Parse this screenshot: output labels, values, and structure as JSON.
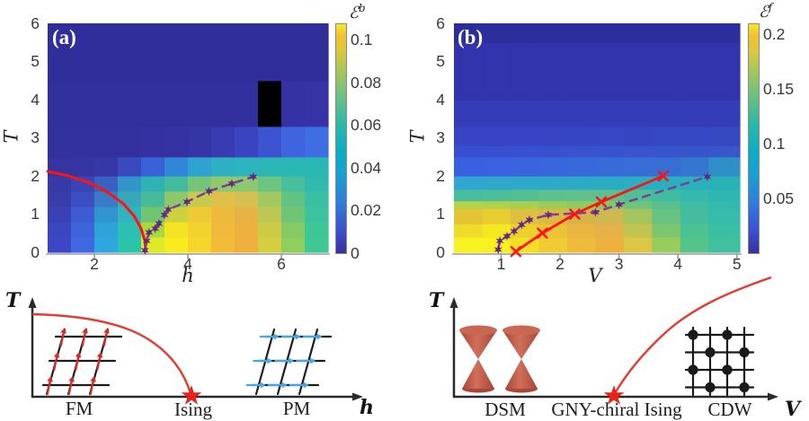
{
  "chart_data": [
    {
      "type": "heatmap",
      "panel": "(a)",
      "xlabel": "h",
      "ylabel": "T",
      "xlim": [
        1,
        7
      ],
      "ylim": [
        0,
        6
      ],
      "x_ticks": [
        2,
        4,
        6
      ],
      "y_ticks": [
        0,
        1,
        2,
        3,
        4,
        5,
        6
      ],
      "grid": false,
      "colorbar": {
        "symbol": "ℰ",
        "sup": "b",
        "ticks": [
          0,
          0.02,
          0.04,
          0.06,
          0.08,
          0.1
        ],
        "max": 0.108
      },
      "heatmap": {
        "x_edges": [
          1,
          1.5,
          2,
          2.5,
          3,
          3.5,
          4,
          4.5,
          5,
          5.5,
          6,
          6.5,
          7
        ],
        "t_edges": [
          0,
          0.4,
          0.8,
          1.2,
          1.6,
          2.0,
          2.5,
          3.3,
          4.5,
          6
        ],
        "cell_colors": [
          [
            "#3b47c6",
            "#3f68e2",
            "#2ea7e0",
            "#28c4ac",
            "#ddea28",
            "#f9ec1e",
            "#f7d62b",
            "#f2bc3a",
            "#efb13c",
            "#d5ce40",
            "#8ecf5d",
            "#3fc794"
          ],
          [
            "#3b45c0",
            "#3e64dc",
            "#2fa2da",
            "#2cc0b2",
            "#a8da40",
            "#f4e322",
            "#f4d22e",
            "#f0ba3c",
            "#edb13e",
            "#cccb48",
            "#84cb64",
            "#3ec696"
          ],
          [
            "#3a41b6",
            "#3d5cd2",
            "#3094d0",
            "#32b4bc",
            "#70c472",
            "#ccd13e",
            "#eeca34",
            "#edbb3c",
            "#e8b342",
            "#bcc754",
            "#70c476",
            "#3cc29c"
          ],
          [
            "#393dac",
            "#3b4ec2",
            "#3a7ac6",
            "#36a8b8",
            "#48ba9a",
            "#8cc86a",
            "#c8ca4c",
            "#dec04a",
            "#d4c050",
            "#a2c862",
            "#62c284",
            "#3abfa2"
          ],
          [
            "#3739a6",
            "#3a44b6",
            "#3a60c2",
            "#3396ca",
            "#2eb2b4",
            "#44bb9c",
            "#74c47a",
            "#90c96c",
            "#8cc870",
            "#6cc480",
            "#46bf9a",
            "#30b9ac"
          ],
          [
            "#3534a2",
            "#3535a4",
            "#3637a8",
            "#3a4abe",
            "#3a62d8",
            "#3286da",
            "#2fa2d2",
            "#2db0c2",
            "#2cb4bc",
            "#2bb5b6",
            "#2ab6b4",
            "#2ab6b2"
          ],
          [
            "#3331a0",
            "#3331a0",
            "#3331a0",
            "#3331a0",
            "#3432a2",
            "#3533a4",
            "#3635a8",
            "#383bb2",
            "#3a44c0",
            "#3c53d2",
            "#3e64e0",
            "#3f6ee4"
          ],
          [
            "#32309e",
            "#32309e",
            "#32309e",
            "#32309e",
            "#32309e",
            "#32309e",
            "#32309e",
            "#32309e",
            "#32309e",
            "#333разe0a0",
            "#3432a4",
            "#3533a6"
          ],
          [
            "#302e9a",
            "#302e9a",
            "#302e9a",
            "#302e9a",
            "#302e9a",
            "#302e9a",
            "#302e9a",
            "#302e9a",
            "#302e9a",
            "#302e9a",
            "#302e9a",
            "#302e9a"
          ]
        ]
      },
      "series": [
        {
          "name": "ising-critical-line",
          "style": "solid",
          "color": "#ff1212",
          "width": 3,
          "marker": "none",
          "points": [
            [
              1,
              2.12
            ],
            [
              1.45,
              2.0
            ],
            [
              1.9,
              1.82
            ],
            [
              2.3,
              1.56
            ],
            [
              2.62,
              1.27
            ],
            [
              2.85,
              0.95
            ],
            [
              3.0,
              0.62
            ],
            [
              3.08,
              0.3
            ],
            [
              3.1,
              0.02
            ]
          ]
        },
        {
          "name": "entanglement-peak-line",
          "style": "dashed",
          "color": "#7a3f9a",
          "marker_color": "#63297f",
          "width": 2.5,
          "marker": "star6",
          "points": [
            [
              3.08,
              0.05
            ],
            [
              3.12,
              0.3
            ],
            [
              3.17,
              0.52
            ],
            [
              3.3,
              0.62
            ],
            [
              3.38,
              0.75
            ],
            [
              3.5,
              0.98
            ],
            [
              3.58,
              1.12
            ],
            [
              3.98,
              1.32
            ],
            [
              4.45,
              1.6
            ],
            [
              4.94,
              1.8
            ],
            [
              5.4,
              1.98
            ]
          ]
        }
      ]
    },
    {
      "type": "heatmap",
      "panel": "(b)",
      "xlabel": "V",
      "ylabel": "T",
      "xlim": [
        0.2,
        5.05
      ],
      "ylim": [
        0,
        6
      ],
      "x_ticks": [
        1,
        2,
        3,
        4,
        5
      ],
      "y_ticks": [
        0,
        1,
        2,
        3,
        4,
        5,
        6
      ],
      "grid": false,
      "colorbar": {
        "symbol": "ℰ",
        "sup": "f",
        "ticks": [
          0.05,
          0.1,
          0.15,
          0.2
        ],
        "max": 0.21
      },
      "heatmap": {
        "x_edges": [
          0.2,
          0.68,
          1.16,
          1.64,
          2.12,
          2.6,
          3.08,
          3.56,
          4.04,
          4.52,
          5.05
        ],
        "t_edges": [
          0,
          0.4,
          0.75,
          1.15,
          1.35,
          1.65,
          2.0,
          2.5,
          2.8,
          3.3,
          4.0,
          5.5,
          6
        ],
        "cell_colors": [
          [
            "#f7f320",
            "#f9f01e",
            "#f4df24",
            "#f0cc32",
            "#eebb3c",
            "#edb23e",
            "#dcc646",
            "#98cc5c",
            "#54c48a",
            "#40c09e"
          ],
          [
            "#f0dc28",
            "#f4e822",
            "#eed02c",
            "#ecc238",
            "#eab540",
            "#e4b246",
            "#c2c452",
            "#7ec66e",
            "#4cc192",
            "#3cbea2"
          ],
          [
            "#e4c434",
            "#e8cc30",
            "#dfc03c",
            "#dcba42",
            "#dab346",
            "#ceb850",
            "#a4c45e",
            "#68c280",
            "#44bd9c",
            "#38bbaa"
          ],
          [
            "#b4d24c",
            "#b0d14e",
            "#a8cf52",
            "#9ccc58",
            "#90ca60",
            "#84c768",
            "#70c47a",
            "#58c08e",
            "#40bca2",
            "#34b9ae"
          ],
          [
            "#46bd9c",
            "#4cbe98",
            "#54c092",
            "#5cc18e",
            "#60c18c",
            "#5cc18e",
            "#50bf94",
            "#40bca0",
            "#34b9ac",
            "#2eb7b2"
          ],
          [
            "#30a6d0",
            "#2fa8cc",
            "#2ea9ca",
            "#2eaac8",
            "#2dabc6",
            "#2cacc4",
            "#2badc2",
            "#2aaec0",
            "#29b0bc",
            "#28b2b6"
          ],
          [
            "#3a60e2",
            "#3a62e0",
            "#3a64de",
            "#3966dc",
            "#3968da",
            "#386ad8",
            "#386cd6",
            "#376ed4",
            "#3576d0",
            "#2f90c8"
          ],
          [
            "#394ed4",
            "#394fd3",
            "#3950d2",
            "#3951d1",
            "#3852d0",
            "#3853cf",
            "#3854ce",
            "#3855cd",
            "#3756cc",
            "#3757ca"
          ],
          [
            "#3744c6",
            "#3744c6",
            "#3744c6",
            "#3745c5",
            "#3645c4",
            "#3646c4",
            "#3646c3",
            "#3647c2",
            "#3547c2",
            "#3548c0"
          ],
          [
            "#343cb8",
            "#343cb8",
            "#343cb8",
            "#343cb8",
            "#343cb8",
            "#343cb8",
            "#343cb8",
            "#343cb8",
            "#343cb8",
            "#343cb8"
          ],
          [
            "#3134ac",
            "#3134ac",
            "#3134ac",
            "#3134ac",
            "#3134ac",
            "#3134ac",
            "#3134ac",
            "#3134ac",
            "#3134ac",
            "#3134ac"
          ],
          [
            "#2d2e9e",
            "#2d2e9e",
            "#2d2e9e",
            "#2d2e9e",
            "#2d2e9e",
            "#2d2e9e",
            "#2d2e9e",
            "#2d2e9e",
            "#2d2e9e",
            "#2d2e9e"
          ]
        ]
      },
      "series": [
        {
          "name": "gny-critical-line",
          "style": "solid",
          "color": "#ff1212",
          "width": 2.8,
          "marker": "x",
          "points": [
            [
              1.25,
              0.02
            ],
            [
              1.7,
              0.5
            ],
            [
              2.25,
              1.0
            ],
            [
              2.7,
              1.32
            ],
            [
              3.75,
              2.0
            ]
          ]
        },
        {
          "name": "entanglement-peak-line",
          "style": "dashed",
          "color": "#7a3f9a",
          "marker_color": "#63297f",
          "width": 2.5,
          "marker": "star6",
          "points": [
            [
              0.95,
              0.07
            ],
            [
              0.98,
              0.3
            ],
            [
              1.1,
              0.42
            ],
            [
              1.22,
              0.55
            ],
            [
              1.35,
              0.72
            ],
            [
              1.48,
              0.85
            ],
            [
              1.8,
              0.98
            ],
            [
              2.6,
              1.05
            ],
            [
              3.0,
              1.25
            ],
            [
              4.5,
              1.98
            ]
          ]
        }
      ]
    }
  ],
  "colorbar_gradient": [
    [
      "#38309f",
      0
    ],
    [
      "#3c50d0",
      10
    ],
    [
      "#2f7ddc",
      22
    ],
    [
      "#17a0d4",
      34
    ],
    [
      "#0cadc4",
      45
    ],
    [
      "#2ab8a8",
      56
    ],
    [
      "#66c084",
      68
    ],
    [
      "#a4c65a",
      79
    ],
    [
      "#d8c93c",
      88
    ],
    [
      "#f2c032",
      95
    ],
    [
      "#f9e921",
      100
    ]
  ],
  "diagrams": {
    "left": {
      "ylabel": "T",
      "xlabel": "h",
      "phase_fm": "FM",
      "phase_critical": "Ising",
      "phase_pm": "PM",
      "curve_color": "#e8392f",
      "star_color": "#ea2118",
      "fm_arrow_color": "#d62b26",
      "pm_arrow_color": "#45a7e8",
      "lattice_color": "#1c1c1c"
    },
    "right": {
      "ylabel": "T",
      "xlabel": "V",
      "phase_dsm": "DSM",
      "phase_critical": "GNY-chiral Ising",
      "phase_cdw": "CDW",
      "curve_color": "#e8392f",
      "star_color": "#ea2118",
      "cone_color": "#c1564a",
      "cone_cap_color": "#c96753",
      "cdw_color": "#1a1a1a"
    }
  }
}
